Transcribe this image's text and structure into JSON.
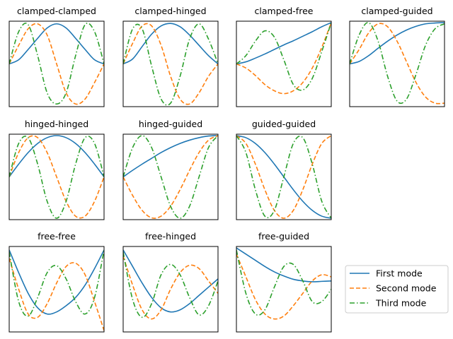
{
  "chart_data": [
    {
      "type": "line",
      "title": "clamped-clamped",
      "grid": false,
      "xlim": [
        0,
        1
      ],
      "ylim": [
        -1,
        1
      ],
      "x": [
        0,
        0.1,
        0.2,
        0.3,
        0.4,
        0.5,
        0.6,
        0.7,
        0.8,
        0.9,
        1
      ],
      "series": [
        {
          "name": "First mode",
          "values": [
            0,
            0.1,
            0.35,
            0.62,
            0.87,
            0.97,
            0.87,
            0.62,
            0.35,
            0.1,
            0
          ]
        },
        {
          "name": "Second mode",
          "values": [
            0,
            0.45,
            0.85,
            0.97,
            0.7,
            0,
            -0.7,
            -0.97,
            -0.85,
            -0.45,
            0
          ]
        },
        {
          "name": "Third mode",
          "values": [
            0,
            0.78,
            0.95,
            0.2,
            -0.7,
            -0.97,
            -0.7,
            0.2,
            0.95,
            0.78,
            0
          ]
        }
      ]
    },
    {
      "type": "line",
      "title": "clamped-hinged",
      "grid": false,
      "xlim": [
        0,
        1
      ],
      "ylim": [
        -1,
        1
      ],
      "x": [
        0,
        0.1,
        0.2,
        0.3,
        0.4,
        0.5,
        0.6,
        0.7,
        0.8,
        0.9,
        1
      ],
      "series": [
        {
          "name": "First mode",
          "values": [
            0,
            0.12,
            0.42,
            0.72,
            0.92,
            0.98,
            0.9,
            0.7,
            0.45,
            0.2,
            0
          ]
        },
        {
          "name": "Second mode",
          "values": [
            0,
            0.5,
            0.92,
            0.92,
            0.45,
            -0.3,
            -0.85,
            -0.97,
            -0.7,
            -0.3,
            0
          ]
        },
        {
          "name": "Third mode",
          "values": [
            0,
            0.85,
            0.85,
            -0.05,
            -0.85,
            -0.95,
            -0.3,
            0.6,
            0.97,
            0.6,
            0
          ]
        }
      ]
    },
    {
      "type": "line",
      "title": "clamped-free",
      "grid": false,
      "xlim": [
        0,
        1
      ],
      "ylim": [
        -1,
        1
      ],
      "x": [
        0,
        0.1,
        0.2,
        0.3,
        0.4,
        0.5,
        0.6,
        0.7,
        0.8,
        0.9,
        1
      ],
      "series": [
        {
          "name": "First mode",
          "values": [
            0,
            0.05,
            0.14,
            0.24,
            0.35,
            0.46,
            0.56,
            0.67,
            0.78,
            0.9,
            1
          ]
        },
        {
          "name": "Second mode",
          "values": [
            0,
            -0.1,
            -0.28,
            -0.5,
            -0.65,
            -0.72,
            -0.65,
            -0.45,
            -0.1,
            0.4,
            1
          ]
        },
        {
          "name": "Third mode",
          "values": [
            0,
            0.2,
            0.55,
            0.8,
            0.65,
            0.1,
            -0.5,
            -0.63,
            -0.35,
            0.3,
            1
          ]
        }
      ]
    },
    {
      "type": "line",
      "title": "clamped-guided",
      "grid": false,
      "xlim": [
        0,
        1
      ],
      "ylim": [
        -1,
        1
      ],
      "x": [
        0,
        0.1,
        0.2,
        0.3,
        0.4,
        0.5,
        0.6,
        0.7,
        0.8,
        0.9,
        1
      ],
      "series": [
        {
          "name": "First mode",
          "values": [
            0,
            0.06,
            0.2,
            0.38,
            0.55,
            0.7,
            0.82,
            0.91,
            0.97,
            0.99,
            1
          ]
        },
        {
          "name": "Second mode",
          "values": [
            0,
            0.35,
            0.75,
            0.97,
            0.9,
            0.55,
            0.05,
            -0.45,
            -0.8,
            -0.95,
            -0.95
          ]
        },
        {
          "name": "Third mode",
          "values": [
            0,
            0.7,
            1,
            0.55,
            -0.3,
            -0.9,
            -0.85,
            -0.25,
            0.45,
            0.85,
            0.97
          ]
        }
      ]
    },
    {
      "type": "line",
      "title": "hinged-hinged",
      "grid": false,
      "xlim": [
        0,
        1
      ],
      "ylim": [
        -1,
        1
      ],
      "x": [
        0,
        0.1,
        0.2,
        0.3,
        0.4,
        0.5,
        0.6,
        0.7,
        0.8,
        0.9,
        1
      ],
      "series": [
        {
          "name": "First mode",
          "values": [
            0,
            0.31,
            0.59,
            0.81,
            0.95,
            1,
            0.95,
            0.81,
            0.59,
            0.31,
            0
          ]
        },
        {
          "name": "Second mode",
          "values": [
            0,
            0.59,
            0.95,
            0.95,
            0.59,
            0,
            -0.59,
            -0.95,
            -0.95,
            -0.59,
            0
          ]
        },
        {
          "name": "Third mode",
          "values": [
            0,
            0.81,
            0.95,
            0.31,
            -0.59,
            -1,
            -0.59,
            0.31,
            0.95,
            0.81,
            0
          ]
        }
      ]
    },
    {
      "type": "line",
      "title": "hinged-guided",
      "grid": false,
      "xlim": [
        0,
        1
      ],
      "ylim": [
        -1,
        1
      ],
      "x": [
        0,
        0.1,
        0.2,
        0.3,
        0.4,
        0.5,
        0.6,
        0.7,
        0.8,
        0.9,
        1
      ],
      "series": [
        {
          "name": "First mode",
          "values": [
            0,
            0.16,
            0.31,
            0.45,
            0.59,
            0.71,
            0.81,
            0.89,
            0.95,
            0.99,
            1
          ]
        },
        {
          "name": "Second mode",
          "values": [
            0,
            -0.45,
            -0.81,
            -0.99,
            -0.95,
            -0.71,
            -0.31,
            0.16,
            0.59,
            0.89,
            1
          ]
        },
        {
          "name": "Third mode",
          "values": [
            0,
            0.71,
            1,
            0.71,
            0,
            -0.71,
            -1,
            -0.71,
            0,
            0.71,
            1
          ]
        }
      ]
    },
    {
      "type": "line",
      "title": "guided-guided",
      "grid": false,
      "xlim": [
        0,
        1
      ],
      "ylim": [
        -1,
        1
      ],
      "x": [
        0,
        0.1,
        0.2,
        0.3,
        0.4,
        0.5,
        0.6,
        0.7,
        0.8,
        0.9,
        1
      ],
      "series": [
        {
          "name": "First mode",
          "values": [
            1,
            0.95,
            0.81,
            0.59,
            0.31,
            0,
            -0.31,
            -0.59,
            -0.81,
            -0.95,
            -1
          ]
        },
        {
          "name": "Second mode",
          "values": [
            1,
            0.81,
            0.31,
            -0.31,
            -0.81,
            -1,
            -0.81,
            -0.31,
            0.31,
            0.81,
            1
          ]
        },
        {
          "name": "Third mode",
          "values": [
            1,
            0.59,
            -0.31,
            -0.95,
            -0.81,
            0,
            0.81,
            0.95,
            0.31,
            -0.59,
            -1
          ]
        }
      ]
    },
    {
      "type": "line",
      "title": "free-free",
      "grid": false,
      "xlim": [
        0,
        1
      ],
      "ylim": [
        -1,
        1
      ],
      "x": [
        0,
        0.1,
        0.2,
        0.3,
        0.4,
        0.5,
        0.6,
        0.7,
        0.8,
        0.9,
        1
      ],
      "series": [
        {
          "name": "First mode",
          "values": [
            0.95,
            0.4,
            -0.1,
            -0.45,
            -0.6,
            -0.55,
            -0.4,
            -0.2,
            0.1,
            0.5,
            0.95
          ]
        },
        {
          "name": "Second mode",
          "values": [
            0.75,
            0,
            -0.6,
            -0.68,
            -0.35,
            0.15,
            0.55,
            0.63,
            0.35,
            -0.3,
            -1
          ]
        },
        {
          "name": "Third mode",
          "values": [
            0.9,
            -0.3,
            -0.65,
            -0.2,
            0.4,
            0.57,
            0.25,
            -0.3,
            -0.6,
            -0.2,
            0.95
          ]
        }
      ]
    },
    {
      "type": "line",
      "title": "free-hinged",
      "grid": false,
      "xlim": [
        0,
        1
      ],
      "ylim": [
        -1,
        1
      ],
      "x": [
        0,
        0.1,
        0.2,
        0.3,
        0.4,
        0.5,
        0.6,
        0.7,
        0.8,
        0.9,
        1
      ],
      "series": [
        {
          "name": "First mode",
          "values": [
            0.95,
            0.55,
            0.15,
            -0.2,
            -0.45,
            -0.55,
            -0.5,
            -0.35,
            -0.15,
            0.05,
            0.25
          ]
        },
        {
          "name": "Second mode",
          "values": [
            0.8,
            0.1,
            -0.5,
            -0.72,
            -0.5,
            0,
            0.4,
            0.58,
            0.5,
            0.2,
            -0.1
          ]
        },
        {
          "name": "Third mode",
          "values": [
            0.9,
            -0.25,
            -0.68,
            -0.35,
            0.35,
            0.6,
            0.35,
            -0.2,
            -0.62,
            -0.4,
            0.2
          ]
        }
      ]
    },
    {
      "type": "line",
      "title": "free-guided",
      "grid": false,
      "xlim": [
        0,
        1
      ],
      "ylim": [
        -1,
        1
      ],
      "x": [
        0,
        0.1,
        0.2,
        0.3,
        0.4,
        0.5,
        0.6,
        0.7,
        0.8,
        0.9,
        1
      ],
      "series": [
        {
          "name": "First mode",
          "values": [
            1,
            0.85,
            0.7,
            0.55,
            0.42,
            0.32,
            0.24,
            0.2,
            0.18,
            0.19,
            0.2
          ]
        },
        {
          "name": "Second mode",
          "values": [
            0.85,
            0.3,
            -0.25,
            -0.6,
            -0.72,
            -0.65,
            -0.4,
            -0.1,
            0.2,
            0.35,
            0.3
          ]
        },
        {
          "name": "Third mode",
          "values": [
            0.95,
            -0.1,
            -0.6,
            -0.5,
            0.05,
            0.55,
            0.6,
            0.2,
            -0.3,
            -0.3,
            0
          ]
        }
      ]
    }
  ],
  "legend": {
    "placement": "bottom-right",
    "items": [
      {
        "label": "First mode",
        "color": "#1f77b4",
        "dash": "solid"
      },
      {
        "label": "Second mode",
        "color": "#ff7f0e",
        "dash": "dashed"
      },
      {
        "label": "Third mode",
        "color": "#2ca02c",
        "dash": "dashdot"
      }
    ]
  }
}
